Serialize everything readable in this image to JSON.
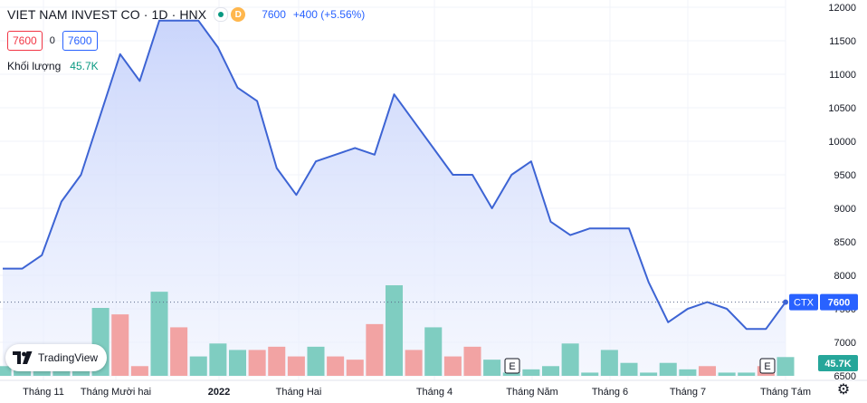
{
  "header": {
    "symbol": "VIET NAM INVEST CO · 1D · HNX",
    "badge_letter": "D",
    "last": "7600",
    "change": "+400 (+5.56%)",
    "open_box": "7600",
    "mid_value": "0",
    "close_box": "7600"
  },
  "volume_legend": {
    "label": "Khối lượng",
    "value": "45.7K"
  },
  "price_label": {
    "ticker": "CTX",
    "value": "7600"
  },
  "volume_label": "45.7K",
  "branding": {
    "name": "TradingView"
  },
  "event_markers": [
    "E",
    "E"
  ],
  "colors": {
    "line": "#3d64d4",
    "up": "#7fcdc1",
    "down": "#f2a3a3",
    "price_tag": "#2962ff",
    "vol_tag": "#26a69a"
  },
  "chart_data": {
    "type": "area",
    "title": "VIET NAM INVEST CO · 1D · HNX",
    "xlabel": "",
    "ylabel": "",
    "x_tick_labels": [
      "Tháng 11",
      "Tháng Mười hai",
      "2022",
      "Tháng Hai",
      "Tháng 4",
      "Tháng Năm",
      "Tháng 6",
      "Tháng 7",
      "Tháng Tám"
    ],
    "y_ticks": [
      6500,
      7000,
      7500,
      8000,
      8500,
      9000,
      9500,
      10000,
      10500,
      11000,
      11500,
      12000
    ],
    "ylim": [
      6500,
      12000
    ],
    "grid": true,
    "price_series": {
      "name": "CTX",
      "values": [
        8100,
        8100,
        8300,
        9100,
        9500,
        10400,
        11300,
        10900,
        11800,
        11800,
        11800,
        11400,
        10800,
        10600,
        9600,
        9200,
        9700,
        9800,
        9900,
        9800,
        10700,
        10300,
        9900,
        9500,
        9500,
        9000,
        9500,
        9700,
        8800,
        8600,
        8700,
        8700,
        8700,
        7900,
        7300,
        7500,
        7600,
        7500,
        7200,
        7200,
        7600
      ]
    },
    "volume_series": {
      "name": "Khối lượng",
      "direction": [
        "up",
        "up",
        "up",
        "up",
        "up",
        "up",
        "down",
        "down",
        "up",
        "down",
        "up",
        "up",
        "up",
        "down",
        "down",
        "down",
        "up",
        "down",
        "down",
        "down",
        "up",
        "down",
        "up",
        "down",
        "down",
        "up",
        "up",
        "up",
        "up",
        "up",
        "up",
        "up",
        "up",
        "up",
        "up",
        "up",
        "down",
        "up",
        "up",
        "down",
        "up"
      ],
      "values": [
        30,
        40,
        35,
        45,
        40,
        210,
        190,
        30,
        260,
        150,
        60,
        100,
        80,
        80,
        90,
        60,
        90,
        60,
        50,
        160,
        280,
        80,
        150,
        60,
        90,
        50,
        10,
        20,
        30,
        100,
        10,
        80,
        40,
        10,
        40,
        20,
        30,
        10,
        10,
        30,
        58
      ]
    },
    "last_price": 7600,
    "last_volume": "45.7K"
  }
}
